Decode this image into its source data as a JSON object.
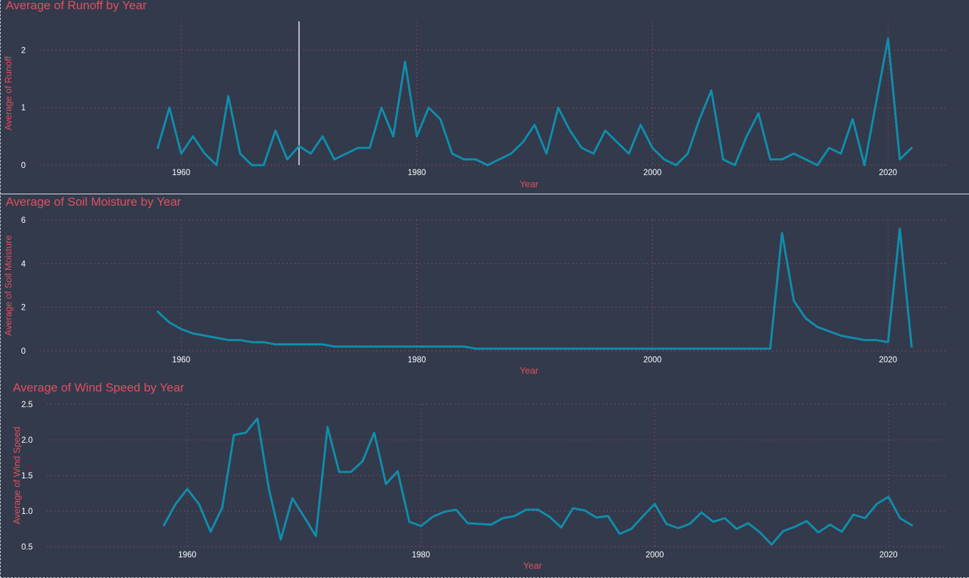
{
  "chart_data": [
    {
      "type": "line",
      "title": "Average of Runoff by Year",
      "xlabel": "Year",
      "ylabel": "Average of Runoff",
      "xlim": [
        1948,
        2025
      ],
      "ylim": [
        0,
        2.5
      ],
      "xticks": [
        "1960",
        "1980",
        "2000",
        "2020"
      ],
      "yticks": [
        "0",
        "1",
        "2"
      ],
      "grid": true,
      "series_color": "#118dab",
      "hover_year": 1970,
      "series": [
        {
          "x": [
            1958,
            1959,
            1960,
            1961,
            1962,
            1963,
            1964,
            1965,
            1966,
            1967,
            1968,
            1969,
            1970,
            1971,
            1972,
            1973,
            1974,
            1975,
            1976,
            1977,
            1978,
            1979,
            1980,
            1981,
            1982,
            1983,
            1984,
            1985,
            1986,
            1987,
            1988,
            1989,
            1990,
            1991,
            1992,
            1993,
            1994,
            1995,
            1996,
            1997,
            1998,
            1999,
            2000,
            2001,
            2002,
            2003,
            2004,
            2005,
            2006,
            2007,
            2008,
            2009,
            2010,
            2011,
            2012,
            2013,
            2014,
            2015,
            2016,
            2017,
            2018,
            2019,
            2020,
            2021,
            2022
          ],
          "values": [
            0.3,
            1.0,
            0.2,
            0.5,
            0.2,
            0.0,
            1.2,
            0.2,
            0.0,
            0.0,
            0.6,
            0.1,
            0.33,
            0.2,
            0.5,
            0.1,
            0.2,
            0.3,
            0.3,
            1.0,
            0.5,
            1.8,
            0.5,
            1.0,
            0.8,
            0.2,
            0.1,
            0.1,
            0.0,
            0.1,
            0.2,
            0.4,
            0.7,
            0.2,
            1.0,
            0.6,
            0.3,
            0.2,
            0.6,
            0.4,
            0.2,
            0.7,
            0.3,
            0.1,
            0.0,
            0.2,
            0.8,
            1.3,
            0.1,
            0.0,
            0.5,
            0.9,
            0.1,
            0.1,
            0.2,
            0.1,
            0.0,
            0.3,
            0.2,
            0.8,
            0.0,
            1.1,
            2.2,
            0.1,
            0.3
          ]
        }
      ]
    },
    {
      "type": "line",
      "title": "Average of Soil Moisture by Year",
      "xlabel": "Year",
      "ylabel": "Average of Soil Moisture",
      "xlim": [
        1948,
        2025
      ],
      "ylim": [
        0,
        6
      ],
      "xticks": [
        "1960",
        "1980",
        "2000",
        "2020"
      ],
      "yticks": [
        "0",
        "2",
        "4",
        "6"
      ],
      "grid": true,
      "series_color": "#118dab",
      "series": [
        {
          "x": [
            1958,
            1959,
            1960,
            1961,
            1962,
            1963,
            1964,
            1965,
            1966,
            1967,
            1968,
            1969,
            1970,
            1971,
            1972,
            1973,
            1974,
            1975,
            1976,
            1977,
            1978,
            1979,
            1980,
            1981,
            1982,
            1983,
            1984,
            1985,
            1986,
            1987,
            1988,
            1989,
            1990,
            1991,
            1992,
            1993,
            1994,
            1995,
            1996,
            1997,
            1998,
            1999,
            2000,
            2001,
            2002,
            2003,
            2004,
            2005,
            2006,
            2007,
            2008,
            2009,
            2010,
            2011,
            2012,
            2013,
            2014,
            2015,
            2016,
            2017,
            2018,
            2019,
            2020,
            2021,
            2022
          ],
          "values": [
            1.8,
            1.3,
            1.0,
            0.8,
            0.7,
            0.6,
            0.5,
            0.5,
            0.4,
            0.4,
            0.3,
            0.3,
            0.3,
            0.3,
            0.3,
            0.2,
            0.2,
            0.2,
            0.2,
            0.2,
            0.2,
            0.2,
            0.2,
            0.2,
            0.2,
            0.2,
            0.2,
            0.1,
            0.1,
            0.1,
            0.1,
            0.1,
            0.1,
            0.1,
            0.1,
            0.1,
            0.1,
            0.1,
            0.1,
            0.1,
            0.1,
            0.1,
            0.1,
            0.1,
            0.1,
            0.1,
            0.1,
            0.1,
            0.1,
            0.1,
            0.1,
            0.1,
            0.1,
            5.4,
            2.3,
            1.5,
            1.1,
            0.9,
            0.7,
            0.6,
            0.5,
            0.5,
            0.4,
            5.6,
            0.2
          ]
        }
      ]
    },
    {
      "type": "line",
      "title": "Average of Wind Speed by Year",
      "xlabel": "Year",
      "ylabel": "Average of Wind Speed",
      "xlim": [
        1948,
        2025
      ],
      "ylim": [
        0.5,
        2.5
      ],
      "xticks": [
        "1960",
        "1980",
        "2000",
        "2020"
      ],
      "yticks": [
        "0.5",
        "1.0",
        "1.5",
        "2.0",
        "2.5"
      ],
      "grid": true,
      "series_color": "#118dab",
      "series": [
        {
          "x": [
            1958,
            1959,
            1960,
            1961,
            1962,
            1963,
            1964,
            1965,
            1966,
            1967,
            1968,
            1969,
            1970,
            1971,
            1972,
            1973,
            1974,
            1975,
            1976,
            1977,
            1978,
            1979,
            1980,
            1981,
            1982,
            1983,
            1984,
            1985,
            1986,
            1987,
            1988,
            1989,
            1990,
            1991,
            1992,
            1993,
            1994,
            1995,
            1996,
            1997,
            1998,
            1999,
            2000,
            2001,
            2002,
            2003,
            2004,
            2005,
            2006,
            2007,
            2008,
            2009,
            2010,
            2011,
            2012,
            2013,
            2014,
            2015,
            2016,
            2017,
            2018,
            2019,
            2020,
            2021,
            2022
          ],
          "values": [
            0.8,
            1.1,
            1.31,
            1.1,
            0.71,
            1.05,
            2.07,
            2.1,
            2.3,
            1.3,
            0.6,
            1.18,
            0.92,
            0.65,
            2.18,
            1.55,
            1.55,
            1.7,
            2.1,
            1.38,
            1.56,
            0.85,
            0.79,
            0.92,
            0.99,
            1.02,
            0.83,
            0.82,
            0.81,
            0.9,
            0.93,
            1.02,
            1.02,
            0.92,
            0.77,
            1.04,
            1.01,
            0.91,
            0.93,
            0.68,
            0.75,
            0.93,
            1.1,
            0.82,
            0.76,
            0.82,
            0.98,
            0.85,
            0.9,
            0.75,
            0.83,
            0.7,
            0.53,
            0.72,
            0.78,
            0.86,
            0.7,
            0.81,
            0.71,
            0.95,
            0.9,
            1.1,
            1.2,
            0.9,
            0.8
          ]
        }
      ]
    }
  ]
}
